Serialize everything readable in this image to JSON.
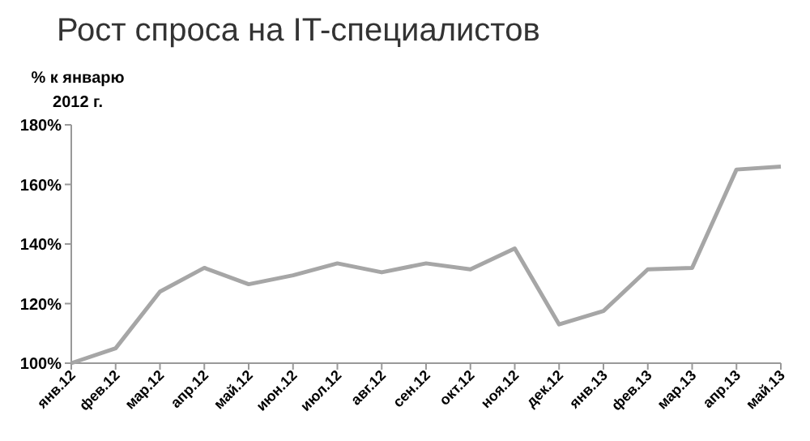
{
  "chart_data": {
    "type": "line",
    "title": "Рост спроса на IT-специалистов",
    "ylabel": "% к январю 2012 г.",
    "categories": [
      "янв.12",
      "фев.12",
      "мар.12",
      "апр.12",
      "май.12",
      "июн.12",
      "июл.12",
      "авг.12",
      "сен.12",
      "окт.12",
      "ноя.12",
      "дек.12",
      "янв.13",
      "фев.13",
      "мар.13",
      "апр.13",
      "май.13"
    ],
    "series": [
      {
        "color": "#a6a6a6",
        "values": [
          100,
          105,
          124,
          132,
          126.5,
          129.5,
          133.5,
          130.5,
          133.5,
          131.5,
          138.5,
          113,
          117.5,
          131.5,
          132,
          165,
          166
        ]
      }
    ],
    "ylim": [
      100,
      180
    ],
    "yticks": [
      {
        "value": 100,
        "label": "100%"
      },
      {
        "value": 120,
        "label": "120%"
      },
      {
        "value": 140,
        "label": "140%"
      },
      {
        "value": 160,
        "label": "160%"
      },
      {
        "value": 180,
        "label": "180%"
      }
    ],
    "grid": false,
    "marker": "none",
    "line_style": "solid"
  }
}
